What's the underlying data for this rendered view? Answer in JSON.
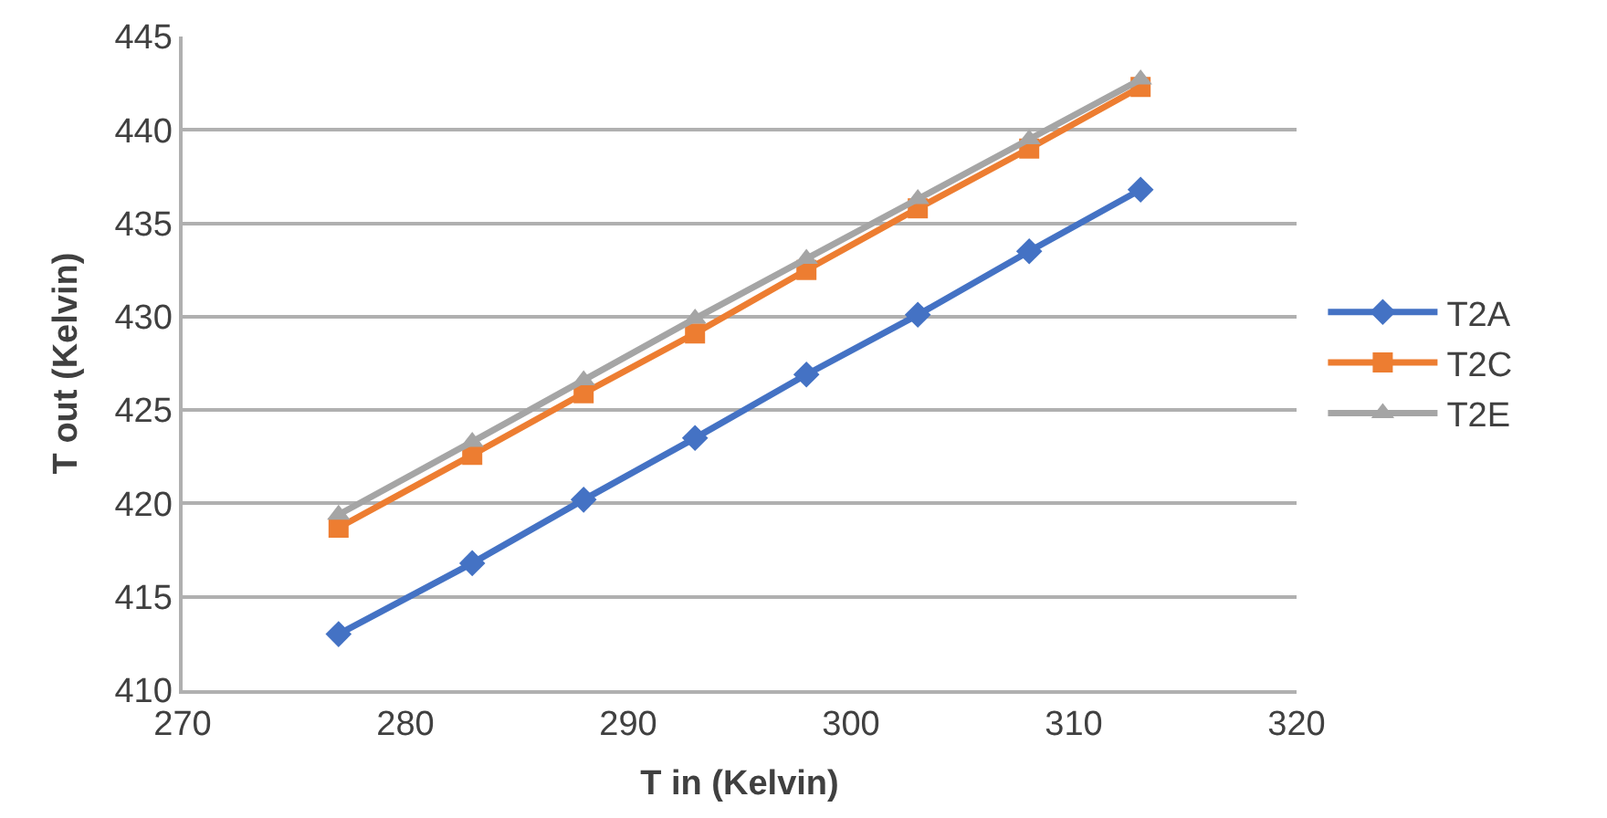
{
  "chart_data": {
    "type": "line",
    "xlabel": "T in (Kelvin)",
    "ylabel": "T out (Kelvin)",
    "x": [
      277,
      283,
      288,
      293,
      298,
      303,
      308,
      313
    ],
    "series": [
      {
        "name": "T2A",
        "color": "#4472c4",
        "marker": "diamond",
        "values": [
          413.0,
          416.8,
          420.2,
          423.5,
          426.9,
          430.1,
          433.5,
          436.8
        ]
      },
      {
        "name": "T2C",
        "color": "#ed7d31",
        "marker": "square",
        "values": [
          418.7,
          422.6,
          425.9,
          429.1,
          432.5,
          435.8,
          439.0,
          442.3
        ]
      },
      {
        "name": "T2E",
        "color": "#a5a5a5",
        "marker": "triangle",
        "values": [
          419.4,
          423.3,
          426.6,
          429.9,
          433.1,
          436.3,
          439.5,
          442.7
        ]
      }
    ],
    "xlim": [
      270,
      320
    ],
    "xticks": [
      270,
      280,
      290,
      300,
      310,
      320
    ],
    "ylim": [
      410,
      445
    ],
    "yticks": [
      410,
      415,
      420,
      425,
      430,
      435,
      440,
      445
    ],
    "grid": "y",
    "legend": "right",
    "line_style": "solid"
  }
}
